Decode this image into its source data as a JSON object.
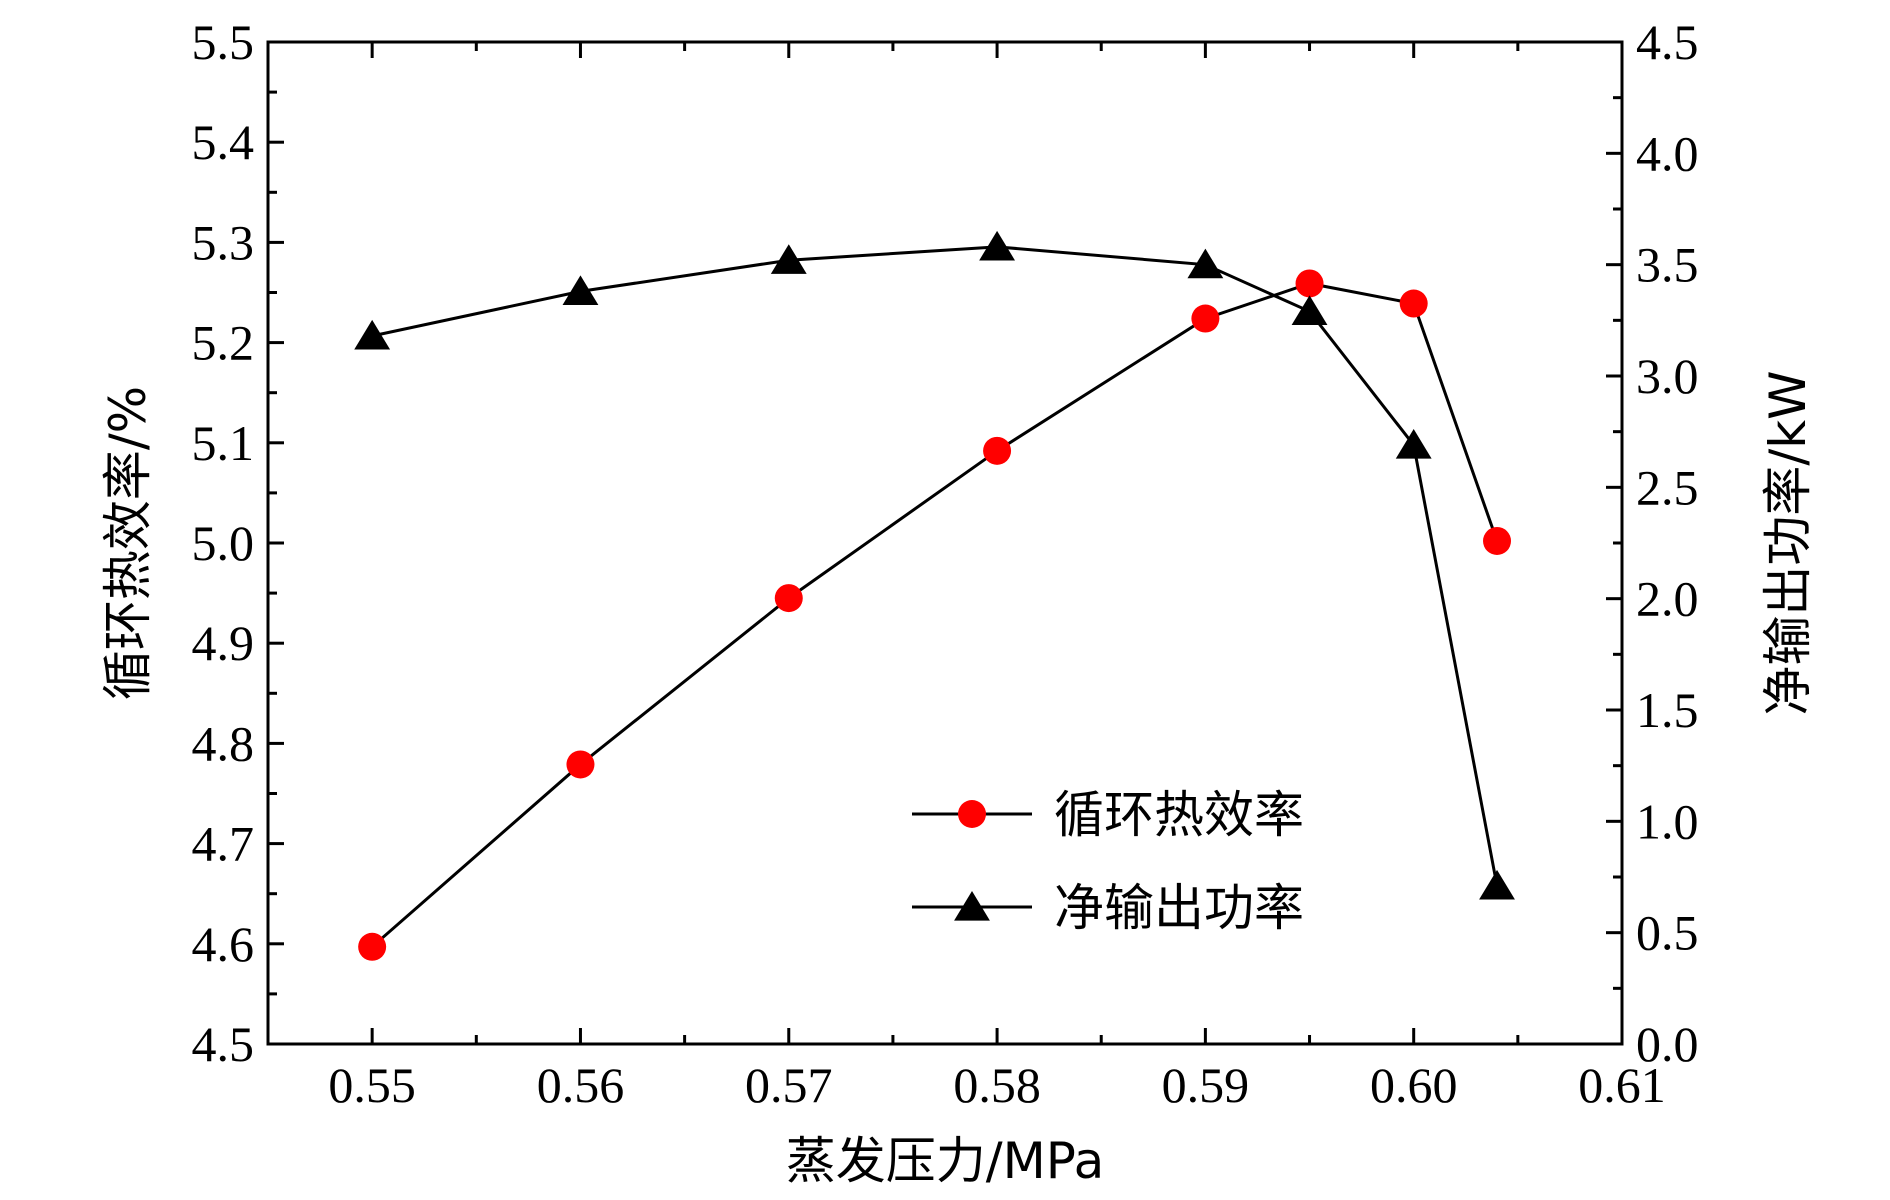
{
  "chart_data": {
    "type": "line",
    "xlabel": "蒸发压力/MPa",
    "ylabel_left": "循环热效率/%",
    "ylabel_right": "净输出功率/kW",
    "xlim": [
      0.545,
      0.61
    ],
    "ylim_left": [
      4.5,
      5.5
    ],
    "ylim_right": [
      0.0,
      4.5
    ],
    "x_ticks": [
      "0.55",
      "0.56",
      "0.57",
      "0.58",
      "0.59",
      "0.60",
      "0.61"
    ],
    "y_ticks_left": [
      "4.5",
      "4.6",
      "4.7",
      "4.8",
      "4.9",
      "5.0",
      "5.1",
      "5.2",
      "5.3",
      "5.4",
      "5.5"
    ],
    "y_ticks_right": [
      "0.0",
      "0.5",
      "1.0",
      "1.5",
      "2.0",
      "2.5",
      "3.0",
      "3.5",
      "4.0",
      "4.5"
    ],
    "grid": false,
    "legend_position": "bottom-right",
    "series": [
      {
        "name": "循环热效率",
        "axis": "left",
        "marker": "circle",
        "color": "#ff0000",
        "x": [
          0.55,
          0.56,
          0.57,
          0.58,
          0.59,
          0.595,
          0.6,
          0.604
        ],
        "values": [
          4.597,
          4.779,
          4.945,
          5.092,
          5.224,
          5.259,
          5.239,
          5.002
        ]
      },
      {
        "name": "净输出功率",
        "axis": "right",
        "marker": "triangle",
        "color": "#000000",
        "x": [
          0.55,
          0.56,
          0.57,
          0.58,
          0.59,
          0.595,
          0.6,
          0.604
        ],
        "values": [
          3.18,
          3.38,
          3.52,
          3.58,
          3.5,
          3.29,
          2.69,
          0.71
        ]
      }
    ]
  }
}
